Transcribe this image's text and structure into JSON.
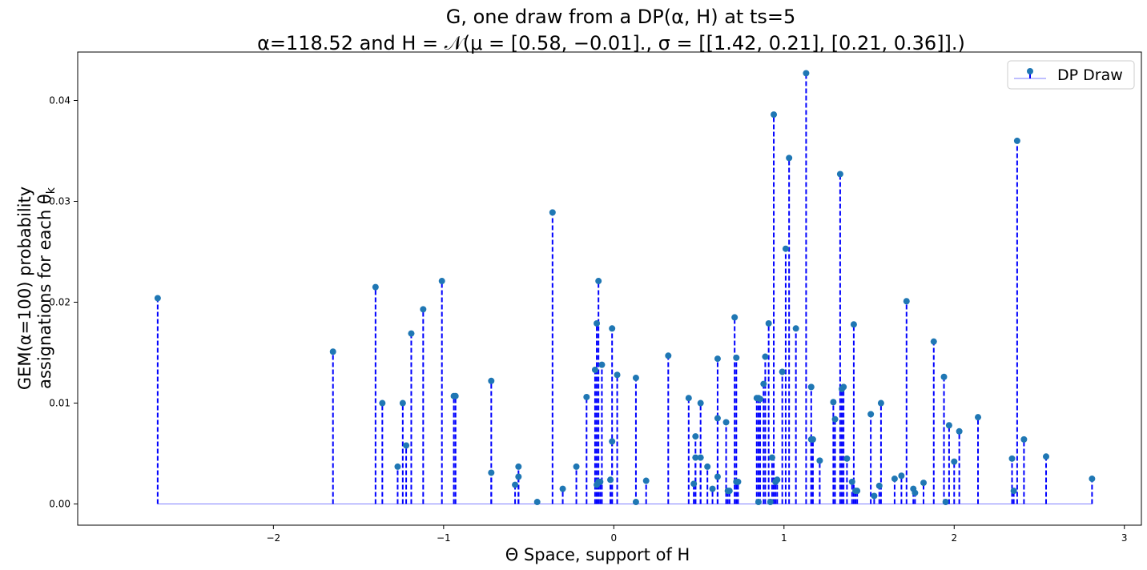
{
  "chart_data": {
    "type": "stem",
    "title_line1": "G, one draw from a DP(α, H) at ts=5",
    "title_line2": "α=118.52 and H = 𝒩(μ = [0.58, −0.01]., σ = [[1.42, 0.21], [0.21, 0.36]].)",
    "xlabel": "Θ Space, support of H",
    "ylabel_line1": "GEM(α=100) probability",
    "ylabel_line2": "assignations for each θ",
    "ylabel_subscript": "k",
    "xlim": [
      -3.15,
      3.1
    ],
    "ylim": [
      -0.0021,
      0.0448
    ],
    "xticks": [
      -2,
      -1,
      0,
      1,
      2,
      3
    ],
    "yticks": [
      0.0,
      0.01,
      0.02,
      0.03,
      0.04
    ],
    "xtick_labels": [
      "−2",
      "−1",
      "0",
      "1",
      "2",
      "3"
    ],
    "ytick_labels": [
      "0.00",
      "0.01",
      "0.02",
      "0.03",
      "0.04"
    ],
    "legend": {
      "label": "DP Draw",
      "position": "upper right"
    },
    "colors": {
      "stem": "#0000ff",
      "marker": "#1f77b4",
      "baseline": "#7f7fff"
    },
    "series": [
      {
        "name": "DP Draw",
        "x": [
          -2.68,
          -1.65,
          -1.4,
          -1.36,
          -1.27,
          -1.24,
          -1.22,
          -1.19,
          -1.12,
          -1.01,
          -0.94,
          -0.93,
          -0.72,
          -0.72,
          -0.58,
          -0.56,
          -0.56,
          -0.45,
          -0.36,
          -0.3,
          -0.22,
          -0.16,
          -0.11,
          -0.1,
          -0.1,
          -0.09,
          -0.09,
          -0.08,
          -0.07,
          -0.02,
          -0.01,
          -0.01,
          0.02,
          0.13,
          0.13,
          0.19,
          0.32,
          0.44,
          0.47,
          0.48,
          0.48,
          0.51,
          0.51,
          0.55,
          0.58,
          0.61,
          0.61,
          0.61,
          0.66,
          0.67,
          0.68,
          0.71,
          0.72,
          0.72,
          0.73,
          0.84,
          0.85,
          0.85,
          0.86,
          0.88,
          0.89,
          0.91,
          0.92,
          0.93,
          0.94,
          0.95,
          0.96,
          0.99,
          1.01,
          1.03,
          1.07,
          1.13,
          1.16,
          1.16,
          1.17,
          1.21,
          1.29,
          1.3,
          1.33,
          1.34,
          1.35,
          1.37,
          1.4,
          1.41,
          1.42,
          1.43,
          1.51,
          1.53,
          1.56,
          1.57,
          1.65,
          1.69,
          1.72,
          1.76,
          1.77,
          1.82,
          1.88,
          1.94,
          1.95,
          1.97,
          2.0,
          2.03,
          2.14,
          2.34,
          2.35,
          2.37,
          2.41,
          2.54,
          2.81
        ],
        "y": [
          0.0204,
          0.0151,
          0.0215,
          0.01,
          0.0037,
          0.01,
          0.0058,
          0.0169,
          0.0193,
          0.0221,
          0.0107,
          0.0107,
          0.0122,
          0.0031,
          0.0019,
          0.0027,
          0.0037,
          0.0002,
          0.0289,
          0.0015,
          0.0037,
          0.0106,
          0.0133,
          0.0179,
          0.0019,
          0.0022,
          0.0221,
          0.0022,
          0.0138,
          0.0024,
          0.0174,
          0.0062,
          0.0128,
          0.0125,
          0.0002,
          0.0023,
          0.0147,
          0.0105,
          0.002,
          0.0067,
          0.0046,
          0.01,
          0.0046,
          0.0037,
          0.0015,
          0.0085,
          0.0144,
          0.0027,
          0.0081,
          0.0013,
          0.0013,
          0.0185,
          0.0022,
          0.0145,
          0.0022,
          0.0105,
          0.0002,
          0.0105,
          0.0104,
          0.0119,
          0.0146,
          0.0179,
          0.0002,
          0.0046,
          0.0386,
          0.0022,
          0.0024,
          0.0131,
          0.0253,
          0.0343,
          0.0174,
          0.0427,
          0.0116,
          0.0064,
          0.0064,
          0.0043,
          0.0101,
          0.0084,
          0.0327,
          0.0114,
          0.0116,
          0.0045,
          0.0022,
          0.0178,
          0.0013,
          0.0013,
          0.0089,
          0.0008,
          0.0018,
          0.01,
          0.0025,
          0.0028,
          0.0201,
          0.0015,
          0.0011,
          0.0021,
          0.0161,
          0.0126,
          0.0002,
          0.0078,
          0.0042,
          0.0072,
          0.0086,
          0.0045,
          0.0013,
          0.036,
          0.0064,
          0.0047,
          0.0025
        ]
      }
    ]
  }
}
